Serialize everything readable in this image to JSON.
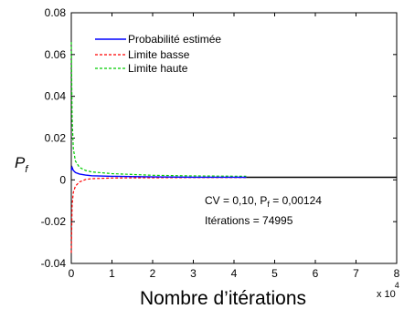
{
  "chart_data": {
    "type": "line",
    "title": "",
    "xlabel": "Nombre d’itérations",
    "ylabel": "P",
    "ylabel_sub": "f",
    "x_multiplier": "x 10",
    "x_multiplier_exp": "4",
    "xlim": [
      0,
      8
    ],
    "ylim": [
      -0.04,
      0.08
    ],
    "x_ticks": [
      0,
      1,
      2,
      3,
      4,
      5,
      6,
      7,
      8
    ],
    "y_ticks": [
      -0.04,
      -0.02,
      0,
      0.02,
      0.04,
      0.06,
      0.08
    ],
    "x_tick_labels": [
      "0",
      "1",
      "2",
      "3",
      "4",
      "5",
      "6",
      "7",
      "8"
    ],
    "y_tick_labels": [
      "-0.04",
      "-0.02",
      "0",
      "0.02",
      "0.04",
      "0.06",
      "0.08"
    ],
    "grid": false,
    "legend_position": "top-left",
    "series": [
      {
        "name": "Probabilité  estimée",
        "color": "#0000ff",
        "style": "solid",
        "x": [
          0,
          0.02,
          0.05,
          0.1,
          0.2,
          0.35,
          0.5,
          1,
          2,
          3,
          4.3
        ],
        "y": [
          0.0045,
          0.006,
          0.0045,
          0.0035,
          0.0028,
          0.0023,
          0.002,
          0.0017,
          0.0014,
          0.0013,
          0.00124
        ]
      },
      {
        "name": "Limite basse",
        "color": "#ff0000",
        "style": "dashed",
        "x": [
          0,
          0.02,
          0.05,
          0.1,
          0.2,
          0.35,
          0.5,
          1,
          2,
          3,
          4.3
        ],
        "y": [
          -0.035,
          -0.012,
          -0.006,
          -0.003,
          -0.001,
          0.0002,
          0.0006,
          0.0009,
          0.001,
          0.0011,
          0.0011
        ]
      },
      {
        "name": "Limite haute",
        "color": "#00cc00",
        "style": "dashed",
        "x": [
          0,
          0.02,
          0.05,
          0.1,
          0.2,
          0.35,
          0.5,
          1,
          2,
          3,
          4.3
        ],
        "y": [
          0.066,
          0.03,
          0.015,
          0.009,
          0.006,
          0.0045,
          0.0038,
          0.003,
          0.0022,
          0.0019,
          0.0017
        ]
      },
      {
        "name": "",
        "color": "#000000",
        "style": "solid",
        "x": [
          4.3,
          8
        ],
        "y": [
          0.00124,
          0.00124
        ]
      }
    ],
    "annotations": {
      "cv_line": "CV = 0,10,  P",
      "cv_sub": "f",
      "cv_value": " = 0,00124",
      "iterations": "Itérations = 74995"
    }
  }
}
